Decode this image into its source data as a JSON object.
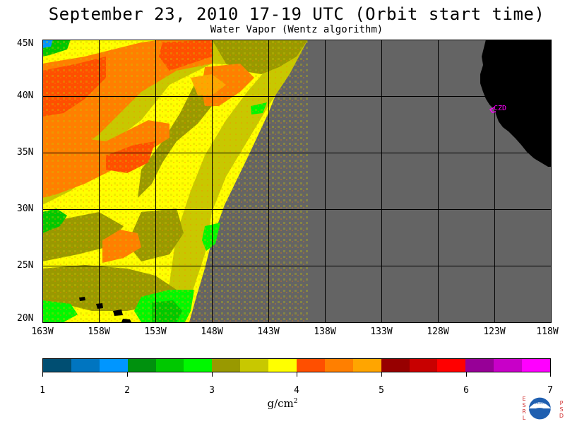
{
  "header": {
    "title": "September 23, 2010  17-19 UTC  (Orbit start time)",
    "subtitle": "Water Vapor (Wentz algorithm)"
  },
  "map": {
    "lat_labels": [
      "45N",
      "40N",
      "35N",
      "30N",
      "25N",
      "20N"
    ],
    "lon_labels": [
      "163W",
      "158W",
      "153W",
      "148W",
      "143W",
      "138W",
      "133W",
      "128W",
      "123W",
      "118W"
    ],
    "station_label": "CZD",
    "colors": {
      "no_data": "#646464",
      "land": "#000000",
      "station": "#ff00ff",
      "grid": "#000000"
    }
  },
  "colorbar": {
    "labels": [
      "1",
      "2",
      "3",
      "4",
      "5",
      "6",
      "7"
    ],
    "colors": [
      "#004e72",
      "#0075c0",
      "#0096ff",
      "#00910e",
      "#00c800",
      "#00f800",
      "#999900",
      "#c8c800",
      "#ffff00",
      "#ff4f00",
      "#ff7f00",
      "#ffa500",
      "#970000",
      "#c80000",
      "#ff0000",
      "#970097",
      "#c800c8",
      "#ff00ff"
    ],
    "unit": "g/cm",
    "unit_exp": "2"
  },
  "logo": {
    "left_letters": "E S R L",
    "right_letters": "P S D",
    "badge": "NOAA"
  }
}
